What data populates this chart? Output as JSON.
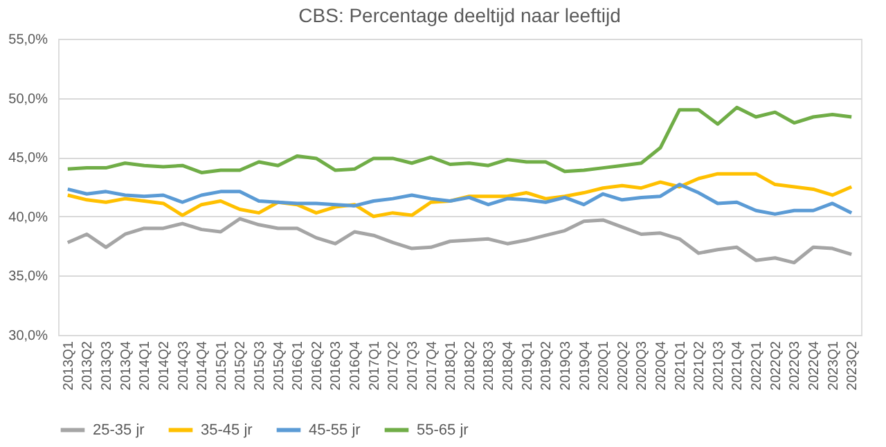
{
  "chart_data": {
    "type": "line",
    "title": "CBS: Percentage deeltijd naar leeftijd",
    "categories": [
      "2013Q1",
      "2013Q2",
      "2013Q3",
      "2013Q4",
      "2014Q1",
      "2014Q2",
      "2014Q3",
      "2014Q4",
      "2015Q1",
      "2015Q2",
      "2015Q3",
      "2015Q4",
      "2016Q1",
      "2016Q2",
      "2016Q3",
      "2016Q4",
      "2017Q1",
      "2017Q2",
      "2017Q3",
      "2017Q4",
      "2018Q1",
      "2018Q2",
      "2018Q3",
      "2018Q4",
      "2019Q1",
      "2019Q2",
      "2019Q3",
      "2019Q4",
      "2020Q1",
      "2020Q2",
      "2020Q3",
      "2020Q4",
      "2021Q1",
      "2021Q2",
      "2021Q3",
      "2021Q4",
      "2022Q1",
      "2022Q2",
      "2022Q3",
      "2022Q4",
      "2023Q1",
      "2023Q2"
    ],
    "series": [
      {
        "name": "25-35 jr",
        "color": "#a5a5a5",
        "values": [
          37.8,
          38.5,
          37.4,
          38.5,
          39.0,
          39.0,
          39.4,
          38.9,
          38.7,
          39.8,
          39.3,
          39.0,
          39.0,
          38.2,
          37.7,
          38.7,
          38.4,
          37.8,
          37.3,
          37.4,
          37.9,
          38.0,
          38.1,
          37.7,
          38.0,
          38.4,
          38.8,
          39.6,
          39.7,
          39.1,
          38.5,
          38.6,
          38.1,
          36.9,
          37.2,
          37.4,
          36.3,
          36.5,
          36.1,
          37.4,
          37.3,
          36.8
        ]
      },
      {
        "name": "35-45 jr",
        "color": "#ffc000",
        "values": [
          41.8,
          41.4,
          41.2,
          41.5,
          41.3,
          41.1,
          40.1,
          41.0,
          41.3,
          40.6,
          40.3,
          41.2,
          41.0,
          40.3,
          40.8,
          41.0,
          40.0,
          40.3,
          40.1,
          41.2,
          41.3,
          41.7,
          41.7,
          41.7,
          42.0,
          41.5,
          41.7,
          42.0,
          42.4,
          42.6,
          42.4,
          42.9,
          42.5,
          43.2,
          43.6,
          43.6,
          43.6,
          42.7,
          42.5,
          42.3,
          41.8,
          42.5
        ]
      },
      {
        "name": "45-55 jr",
        "color": "#5b9bd5",
        "values": [
          42.3,
          41.9,
          42.1,
          41.8,
          41.7,
          41.8,
          41.2,
          41.8,
          42.1,
          42.1,
          41.3,
          41.2,
          41.1,
          41.1,
          41.0,
          40.9,
          41.3,
          41.5,
          41.8,
          41.5,
          41.3,
          41.6,
          41.0,
          41.5,
          41.4,
          41.2,
          41.6,
          41.0,
          41.9,
          41.4,
          41.6,
          41.7,
          42.7,
          42.0,
          41.1,
          41.2,
          40.5,
          40.2,
          40.5,
          40.5,
          41.1,
          40.3
        ]
      },
      {
        "name": "55-65 jr",
        "color": "#70ad47",
        "values": [
          44.0,
          44.1,
          44.1,
          44.5,
          44.3,
          44.2,
          44.3,
          43.7,
          43.9,
          43.9,
          44.6,
          44.3,
          45.1,
          44.9,
          43.9,
          44.0,
          44.9,
          44.9,
          44.5,
          45.0,
          44.4,
          44.5,
          44.3,
          44.8,
          44.6,
          44.6,
          43.8,
          43.9,
          44.1,
          44.3,
          44.5,
          45.8,
          49.0,
          49.0,
          47.8,
          49.2,
          48.4,
          48.8,
          47.9,
          48.4,
          48.6,
          48.4
        ]
      }
    ],
    "ylim": [
      30,
      55
    ],
    "yticks": [
      {
        "value": 30,
        "label": "30,0%"
      },
      {
        "value": 35,
        "label": "35,0%"
      },
      {
        "value": 40,
        "label": "40,0%"
      },
      {
        "value": 45,
        "label": "45,0%"
      },
      {
        "value": 50,
        "label": "50,0%"
      },
      {
        "value": 55,
        "label": "55,0%"
      }
    ],
    "grid": "y",
    "legend": "bottom",
    "marker": "none",
    "line_style": "solid"
  }
}
